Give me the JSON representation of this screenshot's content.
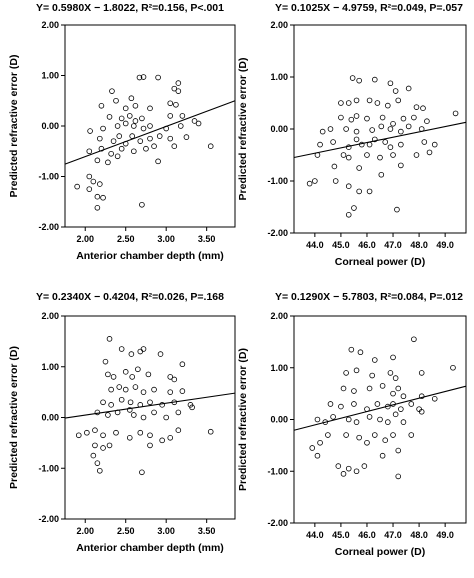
{
  "chart_data": [
    {
      "type": "scatter",
      "title": "Y= 0.5980X − 1.8022, R²=0.156, P<.001",
      "xlabel": "Anterior chamber depth (mm)",
      "ylabel": "Predicted refractive error (D)",
      "xlim": [
        1.75,
        3.85
      ],
      "ylim": [
        -2.0,
        2.0
      ],
      "xticks": [
        2.0,
        2.5,
        3.0,
        3.5
      ],
      "xtick_labels": [
        "2.00",
        "2.50",
        "3.00",
        "3.50"
      ],
      "yticks": [
        -2.0,
        -1.0,
        0.0,
        1.0,
        2.0
      ],
      "ytick_labels": [
        "-2.00",
        "-1.00",
        "0.00",
        "1.00",
        "2.00"
      ],
      "fit": {
        "slope": 0.598,
        "intercept": -1.8022
      },
      "points": [
        [
          2.33,
          0.69
        ],
        [
          2.67,
          0.96
        ],
        [
          2.72,
          0.97
        ],
        [
          2.9,
          0.96
        ],
        [
          3.1,
          0.74
        ],
        [
          3.15,
          0.69
        ],
        [
          3.15,
          0.85
        ],
        [
          2.38,
          0.5
        ],
        [
          2.57,
          0.55
        ],
        [
          2.2,
          0.4
        ],
        [
          2.5,
          0.35
        ],
        [
          2.62,
          0.4
        ],
        [
          2.8,
          0.35
        ],
        [
          3.05,
          0.45
        ],
        [
          3.12,
          0.42
        ],
        [
          2.3,
          0.18
        ],
        [
          2.45,
          0.15
        ],
        [
          2.55,
          0.2
        ],
        [
          2.62,
          0.1
        ],
        [
          2.7,
          0.15
        ],
        [
          3.05,
          0.2
        ],
        [
          3.2,
          0.2
        ],
        [
          2.06,
          -0.1
        ],
        [
          2.22,
          -0.05
        ],
        [
          2.4,
          0.0
        ],
        [
          2.5,
          0.05
        ],
        [
          2.6,
          0.0
        ],
        [
          2.72,
          -0.05
        ],
        [
          2.8,
          0.0
        ],
        [
          3.0,
          -0.05
        ],
        [
          3.18,
          0.0
        ],
        [
          3.35,
          0.1
        ],
        [
          3.4,
          0.05
        ],
        [
          2.18,
          -0.25
        ],
        [
          2.35,
          -0.3
        ],
        [
          2.42,
          -0.2
        ],
        [
          2.5,
          -0.35
        ],
        [
          2.58,
          -0.2
        ],
        [
          2.68,
          -0.3
        ],
        [
          2.8,
          -0.25
        ],
        [
          2.92,
          -0.2
        ],
        [
          3.05,
          -0.25
        ],
        [
          3.25,
          -0.22
        ],
        [
          2.05,
          -0.5
        ],
        [
          2.2,
          -0.45
        ],
        [
          2.32,
          -0.55
        ],
        [
          2.45,
          -0.45
        ],
        [
          2.6,
          -0.5
        ],
        [
          2.75,
          -0.45
        ],
        [
          2.85,
          -0.4
        ],
        [
          3.1,
          -0.4
        ],
        [
          3.55,
          -0.4
        ],
        [
          2.15,
          -0.68
        ],
        [
          2.28,
          -0.72
        ],
        [
          2.4,
          -0.6
        ],
        [
          2.9,
          -0.7
        ],
        [
          1.9,
          -1.2
        ],
        [
          2.05,
          -1.0
        ],
        [
          2.1,
          -1.1
        ],
        [
          2.18,
          -1.15
        ],
        [
          2.05,
          -1.25
        ],
        [
          2.15,
          -1.4
        ],
        [
          2.22,
          -1.42
        ],
        [
          2.15,
          -1.62
        ],
        [
          2.7,
          -1.56
        ]
      ]
    },
    {
      "type": "scatter",
      "title": "Y= 0.1025X − 4.9759, R²=0.049, P=.057",
      "xlabel": "Corneal power (D)",
      "ylabel": "Predicted refractive error (D)",
      "xlim": [
        43.2,
        49.8
      ],
      "ylim": [
        -2.0,
        2.0
      ],
      "xticks": [
        44.0,
        45.0,
        46.0,
        47.0,
        48.0,
        49.0
      ],
      "xtick_labels": [
        "44.0",
        "45.0",
        "46.0",
        "47.0",
        "48.0",
        "49.0"
      ],
      "yticks": [
        -2.0,
        -1.0,
        0.0,
        1.0,
        2.0
      ],
      "ytick_labels": [
        "-2.00",
        "-1.00",
        "0.00",
        "1.00",
        "2.00"
      ],
      "fit": {
        "slope": 0.1025,
        "intercept": -4.9759
      },
      "points": [
        [
          45.45,
          0.98
        ],
        [
          45.7,
          0.93
        ],
        [
          46.3,
          0.95
        ],
        [
          46.9,
          0.88
        ],
        [
          47.1,
          0.73
        ],
        [
          47.6,
          0.78
        ],
        [
          45.0,
          0.5
        ],
        [
          45.3,
          0.5
        ],
        [
          45.6,
          0.55
        ],
        [
          46.1,
          0.55
        ],
        [
          46.4,
          0.5
        ],
        [
          46.8,
          0.45
        ],
        [
          47.2,
          0.55
        ],
        [
          47.9,
          0.42
        ],
        [
          48.15,
          0.4
        ],
        [
          45.0,
          0.22
        ],
        [
          45.4,
          0.18
        ],
        [
          45.6,
          0.25
        ],
        [
          46.0,
          0.2
        ],
        [
          46.6,
          0.22
        ],
        [
          47.0,
          0.1
        ],
        [
          47.4,
          0.2
        ],
        [
          47.8,
          0.22
        ],
        [
          48.3,
          0.15
        ],
        [
          49.4,
          0.3
        ],
        [
          44.3,
          -0.05
        ],
        [
          44.6,
          0.0
        ],
        [
          45.2,
          0.0
        ],
        [
          45.6,
          -0.05
        ],
        [
          46.2,
          -0.02
        ],
        [
          46.55,
          0.05
        ],
        [
          46.9,
          0.0
        ],
        [
          47.3,
          -0.05
        ],
        [
          47.6,
          0.05
        ],
        [
          48.1,
          0.0
        ],
        [
          44.2,
          -0.3
        ],
        [
          44.7,
          -0.25
        ],
        [
          45.3,
          -0.35
        ],
        [
          45.6,
          -0.2
        ],
        [
          45.8,
          -0.3
        ],
        [
          46.1,
          -0.3
        ],
        [
          46.3,
          -0.2
        ],
        [
          46.7,
          -0.25
        ],
        [
          46.9,
          -0.35
        ],
        [
          47.3,
          -0.3
        ],
        [
          48.2,
          -0.25
        ],
        [
          48.6,
          -0.3
        ],
        [
          44.1,
          -0.5
        ],
        [
          45.1,
          -0.5
        ],
        [
          45.3,
          -0.55
        ],
        [
          46.0,
          -0.5
        ],
        [
          46.5,
          -0.55
        ],
        [
          47.0,
          -0.5
        ],
        [
          47.3,
          -0.7
        ],
        [
          47.9,
          -0.5
        ],
        [
          48.4,
          -0.45
        ],
        [
          44.75,
          -0.72
        ],
        [
          45.7,
          -0.75
        ],
        [
          46.55,
          -0.88
        ],
        [
          43.8,
          -1.05
        ],
        [
          44.0,
          -1.0
        ],
        [
          44.8,
          -1.0
        ],
        [
          45.7,
          -1.2
        ],
        [
          45.3,
          -1.1
        ],
        [
          45.5,
          -1.52
        ],
        [
          45.3,
          -1.65
        ],
        [
          46.1,
          -1.2
        ],
        [
          47.15,
          -1.55
        ]
      ]
    },
    {
      "type": "scatter",
      "title": "Y= 0.2340X − 0.4204, R²=0.026, P=.168",
      "xlabel": "Anterior chamber depth (mm)",
      "ylabel": "Predicted refractive error (D)",
      "xlim": [
        1.75,
        3.85
      ],
      "ylim": [
        -2.0,
        2.0
      ],
      "xticks": [
        2.0,
        2.5,
        3.0,
        3.5
      ],
      "xtick_labels": [
        "2.00",
        "2.50",
        "3.00",
        "3.50"
      ],
      "yticks": [
        -2.0,
        -1.0,
        0.0,
        1.0,
        2.0
      ],
      "ytick_labels": [
        "-2.00",
        "-1.00",
        "0.00",
        "1.00",
        "2.00"
      ],
      "fit": {
        "slope": 0.234,
        "intercept": -0.4204
      },
      "points": [
        [
          2.3,
          1.55
        ],
        [
          2.45,
          1.35
        ],
        [
          2.57,
          1.25
        ],
        [
          2.68,
          1.3
        ],
        [
          2.72,
          1.35
        ],
        [
          2.93,
          1.25
        ],
        [
          2.25,
          1.1
        ],
        [
          3.2,
          1.05
        ],
        [
          2.28,
          0.85
        ],
        [
          2.35,
          0.8
        ],
        [
          2.5,
          0.9
        ],
        [
          2.58,
          0.8
        ],
        [
          2.65,
          0.95
        ],
        [
          2.78,
          0.85
        ],
        [
          3.05,
          0.8
        ],
        [
          3.1,
          0.75
        ],
        [
          2.32,
          0.55
        ],
        [
          2.42,
          0.6
        ],
        [
          2.5,
          0.55
        ],
        [
          2.62,
          0.6
        ],
        [
          2.72,
          0.5
        ],
        [
          2.85,
          0.55
        ],
        [
          3.05,
          0.5
        ],
        [
          3.2,
          0.52
        ],
        [
          2.22,
          0.3
        ],
        [
          2.32,
          0.25
        ],
        [
          2.45,
          0.35
        ],
        [
          2.56,
          0.3
        ],
        [
          2.68,
          0.25
        ],
        [
          2.8,
          0.3
        ],
        [
          2.95,
          0.25
        ],
        [
          3.1,
          0.3
        ],
        [
          3.3,
          0.25
        ],
        [
          2.15,
          0.1
        ],
        [
          2.28,
          0.05
        ],
        [
          2.4,
          0.1
        ],
        [
          2.55,
          0.15
        ],
        [
          2.6,
          0.05
        ],
        [
          2.72,
          0.0
        ],
        [
          2.85,
          0.1
        ],
        [
          3.0,
          0.0
        ],
        [
          3.15,
          0.1
        ],
        [
          3.32,
          0.2
        ],
        [
          1.92,
          -0.35
        ],
        [
          2.02,
          -0.3
        ],
        [
          2.12,
          -0.25
        ],
        [
          2.22,
          -0.35
        ],
        [
          2.38,
          -0.3
        ],
        [
          2.55,
          -0.4
        ],
        [
          2.68,
          -0.3
        ],
        [
          2.8,
          -0.35
        ],
        [
          2.95,
          -0.45
        ],
        [
          3.05,
          -0.4
        ],
        [
          3.15,
          -0.25
        ],
        [
          3.55,
          -0.28
        ],
        [
          2.12,
          -0.55
        ],
        [
          2.22,
          -0.6
        ],
        [
          2.3,
          -0.55
        ],
        [
          2.8,
          -0.55
        ],
        [
          2.1,
          -0.75
        ],
        [
          2.15,
          -0.9
        ],
        [
          2.18,
          -1.05
        ],
        [
          2.7,
          -1.08
        ]
      ]
    },
    {
      "type": "scatter",
      "title": "Y= 0.1290X − 5.7803, R²=0.084, P=.012",
      "xlabel": "Corneal power (D)",
      "ylabel": "Predicted refractive error (D)",
      "xlim": [
        43.2,
        49.8
      ],
      "ylim": [
        -2.0,
        2.0
      ],
      "xticks": [
        44.0,
        45.0,
        46.0,
        47.0,
        48.0,
        49.0
      ],
      "xtick_labels": [
        "44.0",
        "45.0",
        "46.0",
        "47.0",
        "48.0",
        "49.0"
      ],
      "yticks": [
        -2.0,
        -1.0,
        0.0,
        1.0,
        2.0
      ],
      "ytick_labels": [
        "-2.00",
        "-1.00",
        "0.00",
        "1.00",
        "2.00"
      ],
      "fit": {
        "slope": 0.129,
        "intercept": -5.7803
      },
      "points": [
        [
          45.4,
          1.35
        ],
        [
          45.75,
          1.3
        ],
        [
          47.8,
          1.55
        ],
        [
          46.3,
          1.15
        ],
        [
          47.0,
          1.2
        ],
        [
          45.2,
          0.9
        ],
        [
          45.6,
          0.95
        ],
        [
          46.2,
          0.85
        ],
        [
          46.9,
          0.9
        ],
        [
          47.1,
          0.8
        ],
        [
          48.1,
          0.9
        ],
        [
          49.3,
          1.0
        ],
        [
          45.1,
          0.6
        ],
        [
          45.5,
          0.55
        ],
        [
          46.1,
          0.6
        ],
        [
          46.6,
          0.65
        ],
        [
          47.0,
          0.5
        ],
        [
          47.2,
          0.6
        ],
        [
          47.4,
          0.45
        ],
        [
          48.1,
          0.45
        ],
        [
          44.6,
          0.3
        ],
        [
          45.0,
          0.25
        ],
        [
          45.5,
          0.3
        ],
        [
          46.0,
          0.2
        ],
        [
          46.4,
          0.3
        ],
        [
          46.8,
          0.25
        ],
        [
          47.0,
          0.3
        ],
        [
          47.3,
          0.2
        ],
        [
          47.7,
          0.3
        ],
        [
          48.0,
          0.2
        ],
        [
          48.6,
          0.4
        ],
        [
          44.1,
          0.0
        ],
        [
          44.4,
          -0.05
        ],
        [
          44.7,
          0.05
        ],
        [
          45.3,
          0.0
        ],
        [
          45.6,
          -0.05
        ],
        [
          46.1,
          0.05
        ],
        [
          46.5,
          0.0
        ],
        [
          46.8,
          -0.05
        ],
        [
          47.1,
          0.1
        ],
        [
          47.4,
          -0.05
        ],
        [
          48.1,
          0.15
        ],
        [
          43.9,
          -0.55
        ],
        [
          44.2,
          -0.45
        ],
        [
          44.5,
          -0.3
        ],
        [
          45.2,
          -0.3
        ],
        [
          45.7,
          -0.35
        ],
        [
          46.0,
          -0.45
        ],
        [
          46.3,
          -0.3
        ],
        [
          46.7,
          -0.4
        ],
        [
          47.0,
          -0.3
        ],
        [
          47.2,
          -0.6
        ],
        [
          47.7,
          -0.3
        ],
        [
          44.1,
          -0.7
        ],
        [
          44.9,
          -0.9
        ],
        [
          45.3,
          -0.95
        ],
        [
          45.9,
          -0.9
        ],
        [
          45.1,
          -1.05
        ],
        [
          45.6,
          -1.0
        ],
        [
          46.6,
          -0.7
        ],
        [
          47.2,
          -1.1
        ]
      ]
    }
  ]
}
